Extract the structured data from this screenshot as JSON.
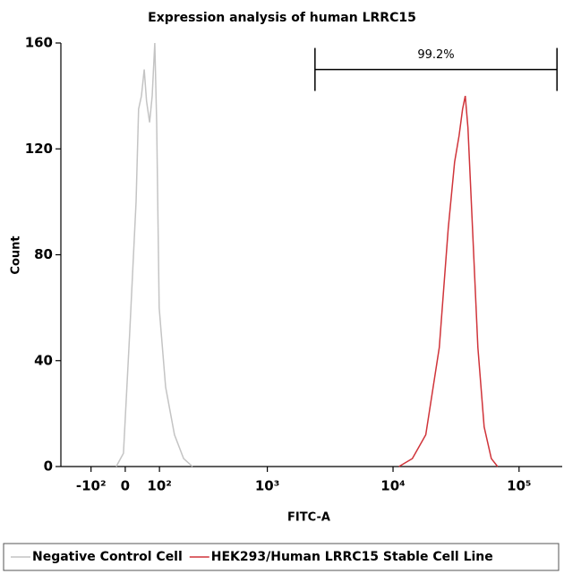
{
  "chart_data": {
    "type": "line",
    "title": "Expression analysis of human LRRC15",
    "x_label": "FITC-A",
    "y_label": "Count",
    "xscale": "biexponential",
    "xlim": [
      -220,
      220000
    ],
    "xticks": [
      {
        "value": -100,
        "label": "-10²"
      },
      0,
      {
        "value": 100,
        "label": "10²"
      },
      {
        "value": 1000,
        "label": "10³"
      },
      {
        "value": 10000,
        "label": "10⁴"
      },
      {
        "value": 100000,
        "label": "10⁵"
      }
    ],
    "ylim": [
      0,
      160
    ],
    "yticks": [
      0,
      40,
      80,
      120,
      160
    ],
    "legend": "bottom",
    "gate": {
      "label": "99.2%",
      "x": [
        2400,
        200000
      ],
      "y": 150
    },
    "series": [
      {
        "name": "Negative Control Cell",
        "color": "#c4c4c4",
        "x": [
          -25,
          -5,
          12,
          30,
          37,
          45,
          53,
          60,
          69,
          77,
          85,
          91,
          99,
          121,
          154,
          192,
          234
        ],
        "values": [
          0,
          5,
          50,
          100,
          135,
          140,
          150,
          138,
          130,
          140,
          160,
          130,
          60,
          30,
          12,
          3,
          0
        ]
      },
      {
        "name": "HEK293/Human LRRC15 Stable Cell Line",
        "color": "#d0343a",
        "x": [
          11130,
          14235,
          18200,
          23300,
          27400,
          30800,
          33400,
          35600,
          37400,
          39300,
          42700,
          47100,
          52800,
          60200,
          67500
        ],
        "values": [
          0,
          3,
          12,
          45,
          90,
          115,
          125,
          135,
          140,
          128,
          90,
          45,
          15,
          3,
          0
        ]
      }
    ]
  }
}
